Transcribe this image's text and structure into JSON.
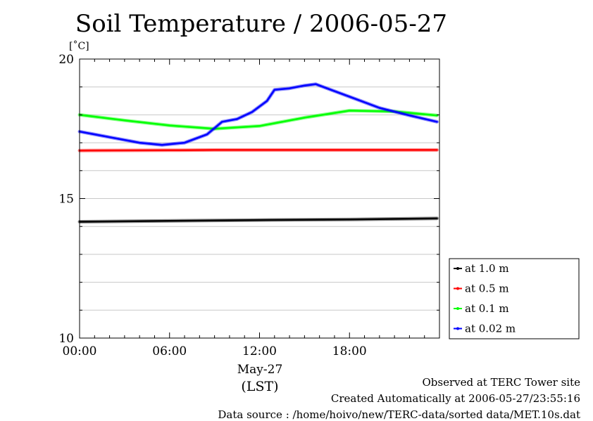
{
  "chart_data": {
    "type": "line",
    "title": "Soil Temperature / 2006-05-27",
    "ylabel": "[˚C]",
    "xlabel": "May-27",
    "xunit": "(LST)",
    "xlim": [
      "00:00",
      "24:00"
    ],
    "ylim": [
      10,
      20
    ],
    "x_ticks": [
      "00:00",
      "06:00",
      "12:00",
      "18:00"
    ],
    "y_ticks": [
      10,
      15,
      20
    ],
    "grid": true,
    "legend_position": "right",
    "series": [
      {
        "name": "at 1.0 m",
        "color": "#000000",
        "x": [
          "00:00",
          "06:00",
          "12:00",
          "18:00",
          "23:50"
        ],
        "values": [
          14.17,
          14.2,
          14.23,
          14.25,
          14.29
        ]
      },
      {
        "name": "at 0.5 m",
        "color": "#ff0000",
        "x": [
          "00:00",
          "06:00",
          "09:00",
          "12:00",
          "18:00",
          "23:50"
        ],
        "values": [
          16.72,
          16.73,
          16.74,
          16.74,
          16.74,
          16.74
        ]
      },
      {
        "name": "at 0.1 m",
        "color": "#00ff00",
        "x": [
          "00:00",
          "03:00",
          "06:00",
          "09:00",
          "12:00",
          "15:00",
          "18:00",
          "21:00",
          "23:50"
        ],
        "values": [
          18.0,
          17.8,
          17.62,
          17.5,
          17.6,
          17.9,
          18.15,
          18.12,
          17.98
        ]
      },
      {
        "name": "at 0.02 m",
        "color": "#0000ff",
        "x": [
          "00:00",
          "02:00",
          "04:00",
          "05:30",
          "07:00",
          "08:30",
          "09:30",
          "10:30",
          "11:30",
          "12:30",
          "13:00",
          "14:00",
          "15:00",
          "15:45",
          "16:30",
          "18:00",
          "20:00",
          "22:00",
          "23:50"
        ],
        "values": [
          17.4,
          17.2,
          17.0,
          16.92,
          17.0,
          17.3,
          17.75,
          17.85,
          18.1,
          18.5,
          18.9,
          18.95,
          19.05,
          19.1,
          18.95,
          18.65,
          18.25,
          17.98,
          17.75
        ]
      }
    ]
  },
  "footer": {
    "site": "Observed at TERC Tower site",
    "created": "Created Automatically at 2006-05-27/23:55:16",
    "source": "Data source : /home/hoivo/new/TERC-data/sorted  data/MET.10s.dat"
  }
}
